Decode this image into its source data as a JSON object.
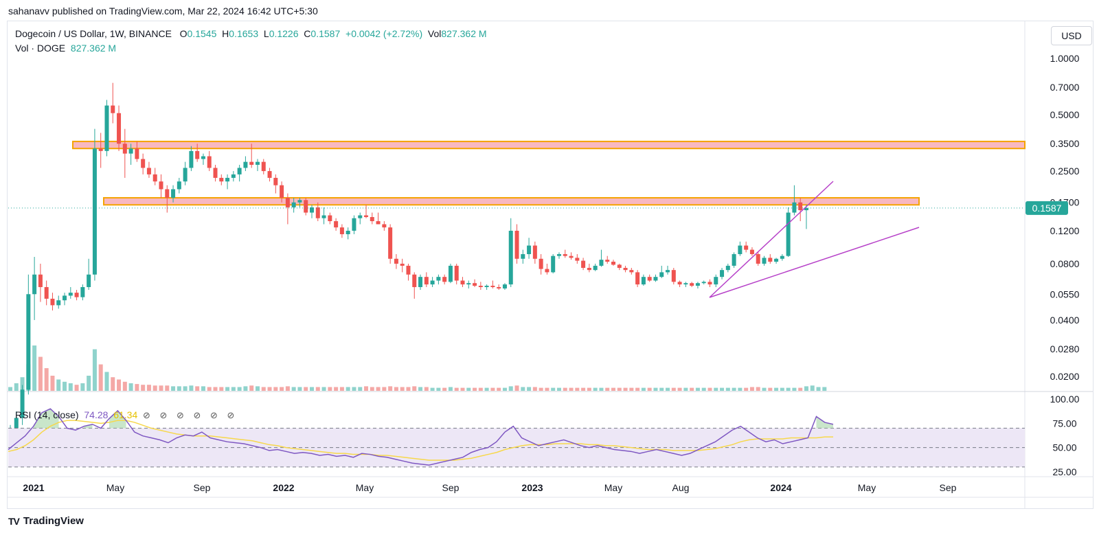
{
  "caption": "sahanavv published on TradingView.com, Mar 22, 2024 16:42 UTC+5:30",
  "legend": {
    "symbol": "Dogecoin / US Dollar, 1W, BINANCE",
    "o_label": "O",
    "o": "0.1545",
    "h_label": "H",
    "h": "0.1653",
    "l_label": "L",
    "l": "0.1226",
    "c_label": "C",
    "c": "0.1587",
    "change": "+0.0042 (+2.72%)",
    "vol_label": "Vol",
    "vol": "827.362 M",
    "vol_line_label": "Vol · DOGE",
    "vol_line_value": "827.362 M"
  },
  "rsi_legend": {
    "label": "RSI (14, close)",
    "value": "74.28",
    "ma_value": "61.34",
    "icons": "⊘ ⊘ ⊘ ⊘ ⊘ ⊘"
  },
  "currency_button": "USD",
  "footer": {
    "logo": "TV",
    "brand": "TradingView"
  },
  "colors": {
    "up": "#26a69a",
    "down": "#ef5350",
    "zone_fill": "#f8b8c0",
    "zone_border": "#f5a300",
    "trendline": "#b640c8",
    "rsi_line": "#7e57c2",
    "rsi_ma": "#f7d84a",
    "rsi_band": "#ede7f6",
    "last_price_badge": "#26a69a"
  },
  "chart_data": {
    "type": "candlestick",
    "title": "Dogecoin / US Dollar, 1W, BINANCE",
    "y_scale": "log",
    "price_axis_ticks": [
      "1.0000",
      "0.7000",
      "0.5000",
      "0.3500",
      "0.2500",
      "0.1700",
      "0.1200",
      "0.0800",
      "0.0550",
      "0.0400",
      "0.0280",
      "0.0200"
    ],
    "x_axis_ticks": [
      "2021",
      "May",
      "Sep",
      "2022",
      "May",
      "Sep",
      "2023",
      "May",
      "Aug",
      "2024",
      "May",
      "Sep"
    ],
    "last_price": "0.1587",
    "resistance_zones": [
      {
        "from": 0.33,
        "to": 0.36
      },
      {
        "from": 0.165,
        "to": 0.18
      }
    ],
    "wedge_lines": [
      {
        "from": [
          "2023-09",
          0.052
        ],
        "to": [
          "2024-03",
          0.21
        ]
      },
      {
        "from": [
          "2023-09",
          0.052
        ],
        "to": [
          "2024-07",
          0.125
        ]
      }
    ],
    "rsi": {
      "axis_ticks": [
        "100.00",
        "75.00",
        "50.00",
        "25.00"
      ],
      "upper_band": 70,
      "lower_band": 30,
      "mid": 50,
      "current": 74.28,
      "ma": 61.34,
      "values": [
        48,
        55,
        62,
        72,
        86,
        90,
        82,
        70,
        68,
        72,
        74,
        70,
        80,
        88,
        78,
        66,
        62,
        60,
        58,
        55,
        60,
        63,
        62,
        66,
        60,
        58,
        56,
        55,
        54,
        52,
        50,
        47,
        48,
        46,
        44,
        45,
        44,
        42,
        43,
        41,
        42,
        40,
        44,
        43,
        41,
        40,
        38,
        36,
        34,
        33,
        32,
        34,
        36,
        38,
        40,
        45,
        48,
        50,
        56,
        66,
        72,
        60,
        56,
        52,
        54,
        56,
        58,
        55,
        52,
        50,
        52,
        50,
        48,
        47,
        46,
        44,
        46,
        48,
        46,
        44,
        42,
        44,
        48,
        52,
        56,
        62,
        68,
        72,
        66,
        60,
        56,
        58,
        54,
        56,
        58,
        60,
        82,
        76,
        74
      ],
      "ma_values": [
        46,
        48,
        52,
        58,
        66,
        72,
        76,
        78,
        78,
        77,
        76,
        75,
        76,
        78,
        78,
        76,
        73,
        70,
        68,
        66,
        64,
        63,
        62,
        62,
        62,
        61,
        60,
        59,
        58,
        57,
        55,
        53,
        52,
        50,
        49,
        48,
        47,
        46,
        45,
        44,
        44,
        43,
        43,
        43,
        42,
        42,
        41,
        40,
        39,
        38,
        37,
        37,
        37,
        37,
        38,
        39,
        41,
        43,
        45,
        48,
        50,
        52,
        53,
        53,
        53,
        54,
        54,
        54,
        54,
        53,
        53,
        52,
        52,
        51,
        50,
        49,
        48,
        48,
        48,
        47,
        47,
        47,
        47,
        48,
        49,
        51,
        53,
        56,
        58,
        59,
        59,
        59,
        59,
        60,
        60,
        60,
        60,
        61,
        61
      ]
    },
    "candles": [
      [
        0.008,
        0.011,
        0.0075,
        0.01
      ],
      [
        0.01,
        0.013,
        0.009,
        0.012
      ],
      [
        0.012,
        0.018,
        0.011,
        0.017
      ],
      [
        0.017,
        0.07,
        0.016,
        0.055
      ],
      [
        0.055,
        0.087,
        0.04,
        0.07
      ],
      [
        0.07,
        0.08,
        0.05,
        0.06
      ],
      [
        0.06,
        0.065,
        0.048,
        0.052
      ],
      [
        0.052,
        0.056,
        0.045,
        0.048
      ],
      [
        0.048,
        0.054,
        0.046,
        0.051
      ],
      [
        0.051,
        0.056,
        0.048,
        0.054
      ],
      [
        0.054,
        0.06,
        0.052,
        0.056
      ],
      [
        0.056,
        0.058,
        0.051,
        0.053
      ],
      [
        0.053,
        0.062,
        0.051,
        0.06
      ],
      [
        0.06,
        0.085,
        0.058,
        0.07
      ],
      [
        0.07,
        0.42,
        0.065,
        0.33
      ],
      [
        0.33,
        0.4,
        0.26,
        0.32
      ],
      [
        0.32,
        0.6,
        0.3,
        0.56
      ],
      [
        0.56,
        0.74,
        0.45,
        0.51
      ],
      [
        0.51,
        0.56,
        0.32,
        0.35
      ],
      [
        0.35,
        0.42,
        0.23,
        0.31
      ],
      [
        0.31,
        0.35,
        0.27,
        0.33
      ],
      [
        0.33,
        0.36,
        0.28,
        0.29
      ],
      [
        0.29,
        0.31,
        0.24,
        0.26
      ],
      [
        0.26,
        0.28,
        0.23,
        0.24
      ],
      [
        0.24,
        0.26,
        0.21,
        0.22
      ],
      [
        0.22,
        0.24,
        0.18,
        0.2
      ],
      [
        0.2,
        0.21,
        0.15,
        0.18
      ],
      [
        0.18,
        0.21,
        0.17,
        0.2
      ],
      [
        0.2,
        0.23,
        0.19,
        0.22
      ],
      [
        0.22,
        0.28,
        0.21,
        0.26
      ],
      [
        0.26,
        0.34,
        0.25,
        0.32
      ],
      [
        0.32,
        0.35,
        0.28,
        0.29
      ],
      [
        0.29,
        0.31,
        0.27,
        0.3
      ],
      [
        0.3,
        0.32,
        0.25,
        0.26
      ],
      [
        0.26,
        0.27,
        0.22,
        0.23
      ],
      [
        0.23,
        0.24,
        0.21,
        0.22
      ],
      [
        0.22,
        0.24,
        0.2,
        0.23
      ],
      [
        0.23,
        0.25,
        0.22,
        0.24
      ],
      [
        0.24,
        0.27,
        0.22,
        0.26
      ],
      [
        0.26,
        0.3,
        0.25,
        0.28
      ],
      [
        0.28,
        0.35,
        0.26,
        0.27
      ],
      [
        0.27,
        0.29,
        0.25,
        0.28
      ],
      [
        0.28,
        0.29,
        0.24,
        0.25
      ],
      [
        0.25,
        0.26,
        0.22,
        0.23
      ],
      [
        0.23,
        0.24,
        0.19,
        0.21
      ],
      [
        0.21,
        0.22,
        0.17,
        0.18
      ],
      [
        0.18,
        0.19,
        0.13,
        0.16
      ],
      [
        0.16,
        0.18,
        0.15,
        0.17
      ],
      [
        0.17,
        0.18,
        0.16,
        0.175
      ],
      [
        0.175,
        0.18,
        0.145,
        0.15
      ],
      [
        0.15,
        0.165,
        0.14,
        0.16
      ],
      [
        0.16,
        0.17,
        0.135,
        0.14
      ],
      [
        0.14,
        0.16,
        0.13,
        0.145
      ],
      [
        0.145,
        0.15,
        0.13,
        0.135
      ],
      [
        0.135,
        0.14,
        0.12,
        0.125
      ],
      [
        0.125,
        0.13,
        0.11,
        0.115
      ],
      [
        0.115,
        0.125,
        0.108,
        0.12
      ],
      [
        0.12,
        0.145,
        0.115,
        0.14
      ],
      [
        0.14,
        0.15,
        0.13,
        0.145
      ],
      [
        0.145,
        0.165,
        0.14,
        0.142
      ],
      [
        0.142,
        0.15,
        0.13,
        0.135
      ],
      [
        0.135,
        0.15,
        0.13,
        0.13
      ],
      [
        0.13,
        0.135,
        0.12,
        0.125
      ],
      [
        0.125,
        0.13,
        0.08,
        0.085
      ],
      [
        0.085,
        0.09,
        0.075,
        0.08
      ],
      [
        0.08,
        0.085,
        0.072,
        0.078
      ],
      [
        0.078,
        0.08,
        0.065,
        0.07
      ],
      [
        0.07,
        0.072,
        0.052,
        0.06
      ],
      [
        0.06,
        0.07,
        0.058,
        0.068
      ],
      [
        0.068,
        0.072,
        0.06,
        0.062
      ],
      [
        0.062,
        0.068,
        0.06,
        0.065
      ],
      [
        0.065,
        0.07,
        0.062,
        0.068
      ],
      [
        0.068,
        0.07,
        0.062,
        0.064
      ],
      [
        0.064,
        0.08,
        0.063,
        0.078
      ],
      [
        0.078,
        0.08,
        0.062,
        0.065
      ],
      [
        0.065,
        0.068,
        0.06,
        0.062
      ],
      [
        0.062,
        0.065,
        0.059,
        0.063
      ],
      [
        0.063,
        0.066,
        0.06,
        0.061
      ],
      [
        0.061,
        0.064,
        0.058,
        0.06
      ],
      [
        0.06,
        0.062,
        0.058,
        0.061
      ],
      [
        0.061,
        0.065,
        0.059,
        0.06
      ],
      [
        0.06,
        0.062,
        0.058,
        0.059
      ],
      [
        0.059,
        0.063,
        0.058,
        0.062
      ],
      [
        0.062,
        0.14,
        0.06,
        0.12
      ],
      [
        0.12,
        0.13,
        0.08,
        0.085
      ],
      [
        0.085,
        0.095,
        0.08,
        0.09
      ],
      [
        0.09,
        0.11,
        0.085,
        0.1
      ],
      [
        0.1,
        0.105,
        0.08,
        0.085
      ],
      [
        0.085,
        0.09,
        0.07,
        0.075
      ],
      [
        0.075,
        0.08,
        0.07,
        0.072
      ],
      [
        0.072,
        0.09,
        0.071,
        0.088
      ],
      [
        0.088,
        0.092,
        0.085,
        0.09
      ],
      [
        0.09,
        0.095,
        0.086,
        0.088
      ],
      [
        0.088,
        0.092,
        0.084,
        0.086
      ],
      [
        0.086,
        0.09,
        0.08,
        0.083
      ],
      [
        0.083,
        0.086,
        0.074,
        0.076
      ],
      [
        0.076,
        0.08,
        0.072,
        0.074
      ],
      [
        0.074,
        0.08,
        0.073,
        0.078
      ],
      [
        0.078,
        0.095,
        0.077,
        0.084
      ],
      [
        0.084,
        0.088,
        0.08,
        0.082
      ],
      [
        0.082,
        0.084,
        0.078,
        0.079
      ],
      [
        0.079,
        0.08,
        0.074,
        0.076
      ],
      [
        0.076,
        0.078,
        0.072,
        0.074
      ],
      [
        0.074,
        0.076,
        0.07,
        0.072
      ],
      [
        0.072,
        0.074,
        0.06,
        0.062
      ],
      [
        0.062,
        0.07,
        0.061,
        0.068
      ],
      [
        0.068,
        0.07,
        0.064,
        0.065
      ],
      [
        0.065,
        0.07,
        0.064,
        0.068
      ],
      [
        0.068,
        0.078,
        0.067,
        0.072
      ],
      [
        0.072,
        0.078,
        0.07,
        0.074
      ],
      [
        0.074,
        0.076,
        0.062,
        0.064
      ],
      [
        0.064,
        0.065,
        0.06,
        0.062
      ],
      [
        0.062,
        0.064,
        0.06,
        0.063
      ],
      [
        0.063,
        0.064,
        0.06,
        0.061
      ],
      [
        0.061,
        0.064,
        0.059,
        0.063
      ],
      [
        0.063,
        0.065,
        0.062,
        0.064
      ],
      [
        0.064,
        0.066,
        0.06,
        0.062
      ],
      [
        0.062,
        0.07,
        0.06,
        0.068
      ],
      [
        0.068,
        0.076,
        0.066,
        0.074
      ],
      [
        0.074,
        0.08,
        0.072,
        0.078
      ],
      [
        0.078,
        0.092,
        0.076,
        0.09
      ],
      [
        0.09,
        0.105,
        0.088,
        0.1
      ],
      [
        0.1,
        0.105,
        0.092,
        0.095
      ],
      [
        0.095,
        0.098,
        0.088,
        0.09
      ],
      [
        0.09,
        0.092,
        0.078,
        0.08
      ],
      [
        0.08,
        0.088,
        0.078,
        0.086
      ],
      [
        0.086,
        0.09,
        0.08,
        0.082
      ],
      [
        0.082,
        0.086,
        0.08,
        0.085
      ],
      [
        0.085,
        0.09,
        0.083,
        0.088
      ],
      [
        0.088,
        0.16,
        0.087,
        0.15
      ],
      [
        0.15,
        0.21,
        0.145,
        0.17
      ],
      [
        0.17,
        0.18,
        0.135,
        0.1545
      ],
      [
        0.1545,
        0.1653,
        0.1226,
        0.1587
      ]
    ],
    "volume": [
      0.5,
      1.0,
      1.8,
      3.5,
      6.0,
      4.5,
      3.0,
      2.0,
      1.5,
      1.2,
      1.0,
      0.8,
      1.0,
      2.0,
      5.5,
      3.5,
      2.5,
      1.8,
      1.5,
      1.2,
      1.0,
      0.9,
      0.8,
      0.8,
      0.7,
      0.7,
      0.7,
      0.6,
      0.6,
      0.6,
      0.7,
      0.6,
      0.6,
      0.5,
      0.5,
      0.5,
      0.5,
      0.5,
      0.5,
      0.6,
      0.7,
      0.6,
      0.5,
      0.5,
      0.5,
      0.5,
      0.6,
      0.5,
      0.5,
      0.5,
      0.5,
      0.5,
      0.5,
      0.5,
      0.5,
      0.5,
      0.5,
      0.5,
      0.5,
      0.6,
      0.5,
      0.5,
      0.5,
      0.6,
      0.5,
      0.5,
      0.5,
      0.6,
      0.5,
      0.5,
      0.4,
      0.4,
      0.4,
      0.5,
      0.4,
      0.4,
      0.4,
      0.4,
      0.4,
      0.4,
      0.4,
      0.4,
      0.4,
      0.6,
      0.7,
      0.5,
      0.5,
      0.5,
      0.4,
      0.4,
      0.4,
      0.4,
      0.4,
      0.4,
      0.4,
      0.4,
      0.4,
      0.4,
      0.4,
      0.4,
      0.4,
      0.4,
      0.4,
      0.4,
      0.4,
      0.4,
      0.4,
      0.4,
      0.4,
      0.4,
      0.4,
      0.4,
      0.4,
      0.4,
      0.4,
      0.4,
      0.4,
      0.4,
      0.4,
      0.4,
      0.4,
      0.4,
      0.4,
      0.5,
      0.5,
      0.4,
      0.4,
      0.4,
      0.4,
      0.4,
      0.4,
      0.4,
      0.6,
      0.7,
      0.5,
      0.5
    ]
  }
}
